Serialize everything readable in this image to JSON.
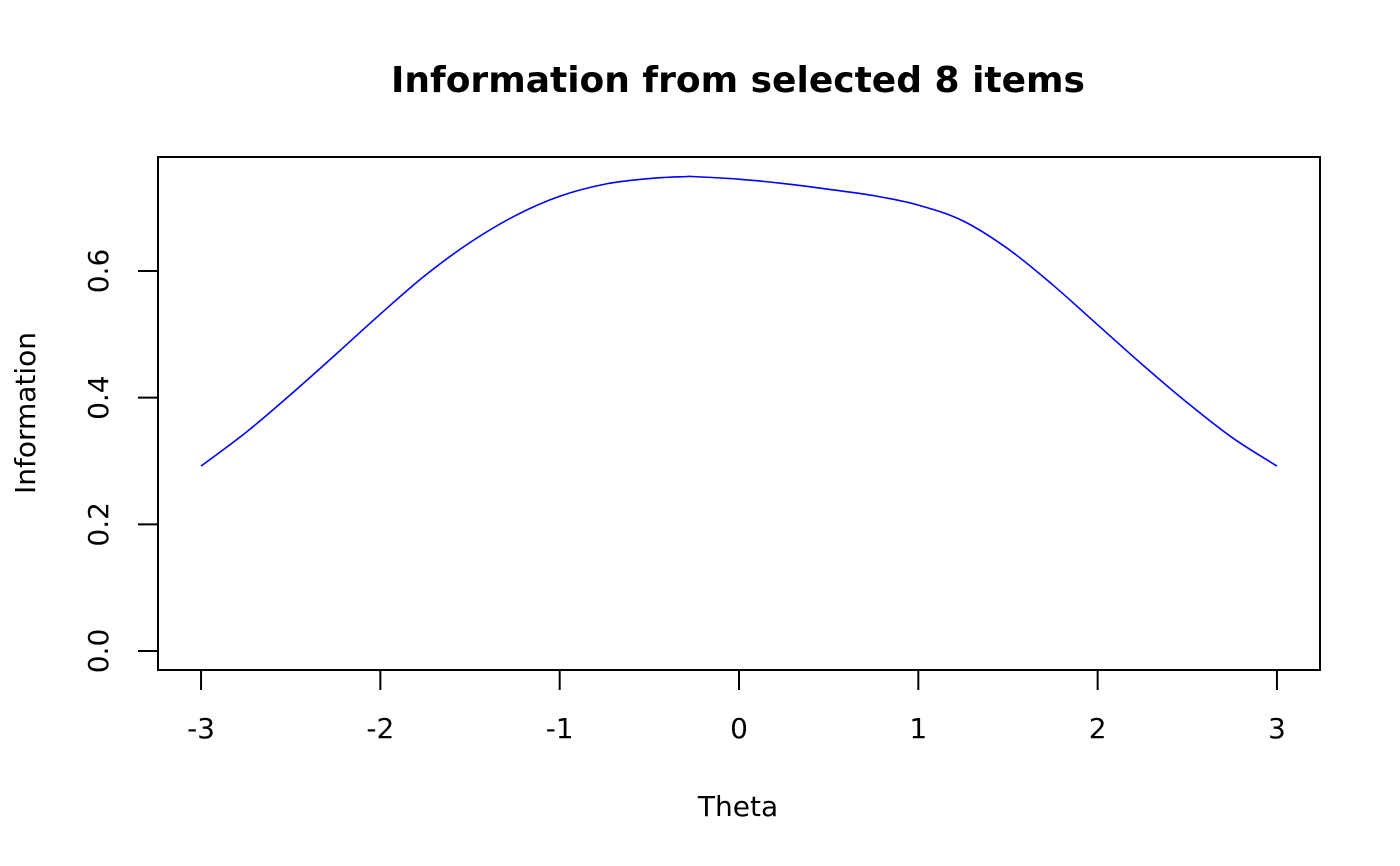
{
  "chart_data": {
    "type": "line",
    "title": "Information from selected 8 items",
    "xlabel": "Theta",
    "ylabel": "Information",
    "xlim": [
      -3.24,
      3.24
    ],
    "ylim": [
      -0.03,
      0.78
    ],
    "x_ticks": [
      -3,
      -2,
      -1,
      0,
      1,
      2,
      3
    ],
    "x_tick_labels": [
      "-3",
      "-2",
      "-1",
      "0",
      "1",
      "2",
      "3"
    ],
    "y_ticks": [
      0.0,
      0.2,
      0.4,
      0.6
    ],
    "y_tick_labels": [
      "0.0",
      "0.2",
      "0.4",
      "0.6"
    ],
    "grid": false,
    "legend": "none",
    "series": [
      {
        "color": "#0000ff",
        "x": [
          -3.0,
          -2.75,
          -2.5,
          -2.25,
          -2.0,
          -1.75,
          -1.5,
          -1.25,
          -1.0,
          -0.75,
          -0.5,
          -0.3,
          -0.25,
          0.0,
          0.25,
          0.5,
          0.75,
          1.0,
          1.25,
          1.5,
          1.75,
          2.0,
          2.25,
          2.5,
          2.75,
          3.0
        ],
        "y": [
          0.292,
          0.345,
          0.405,
          0.468,
          0.532,
          0.593,
          0.645,
          0.687,
          0.718,
          0.737,
          0.746,
          0.749,
          0.749,
          0.745,
          0.738,
          0.729,
          0.719,
          0.704,
          0.679,
          0.635,
          0.578,
          0.515,
          0.452,
          0.392,
          0.337,
          0.292
        ]
      }
    ]
  }
}
